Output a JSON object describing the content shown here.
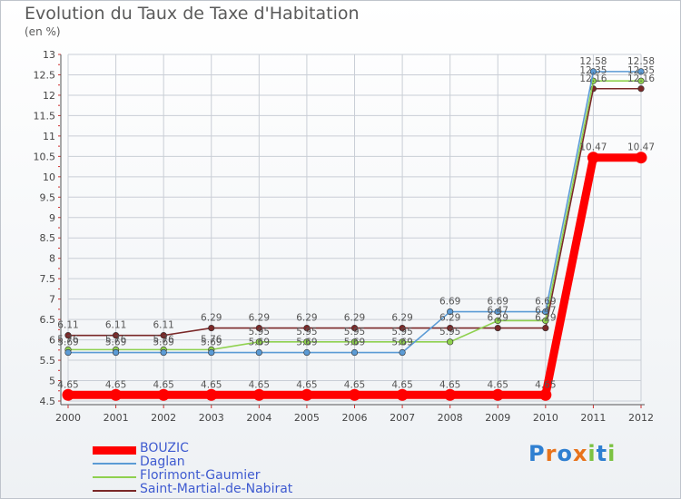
{
  "page": {
    "title": "Evolution du Taux de Taxe d'Habitation",
    "subtitle": "(en %)"
  },
  "logo": {
    "letters": [
      "P",
      "r",
      "o",
      "x",
      "i",
      "t",
      "i"
    ],
    "colors": [
      "#2f7fd1",
      "#e8731c",
      "#2f7fd1",
      "#e8731c",
      "#7cc242",
      "#2f7fd1",
      "#7cc242"
    ]
  },
  "chart_data": {
    "type": "line",
    "title": "Evolution du Taux de Taxe d'Habitation",
    "ylabel": "(en %)",
    "x": [
      "2000",
      "2001",
      "2002",
      "2003",
      "2004",
      "2005",
      "2006",
      "2007",
      "2008",
      "2009",
      "2010",
      "2011",
      "2012"
    ],
    "ylim": [
      4.5,
      13
    ],
    "yticks": [
      "4.5",
      "5",
      "5.5",
      "6",
      "6.5",
      "7",
      "7.5",
      "8",
      "8.5",
      "9",
      "9.5",
      "10",
      "10.5",
      "11",
      "11.5",
      "12",
      "12.5",
      "13"
    ],
    "series": [
      {
        "name": "BOUZIC",
        "color": "#ff0000",
        "values": [
          4.65,
          4.65,
          4.65,
          4.65,
          4.65,
          4.65,
          4.65,
          4.65,
          4.65,
          4.65,
          4.65,
          10.47,
          10.47
        ],
        "labels": [
          "4.65",
          "4.65",
          "4.65",
          "4.65",
          "4.65",
          "4.65",
          "4.65",
          "4.65",
          "4.65",
          "4.65",
          "4.65",
          "10.47",
          "10.47"
        ]
      },
      {
        "name": "Daglan",
        "color": "#5b9bd5",
        "values": [
          5.69,
          5.69,
          5.69,
          5.69,
          5.69,
          5.69,
          5.69,
          5.69,
          6.69,
          6.69,
          6.69,
          12.58,
          12.58
        ],
        "labels": [
          "5.69",
          "5.69",
          "5.69",
          "5.69",
          "5.69",
          "5.69",
          "5.69",
          "5.69",
          "6.69",
          "6.69",
          "6.69",
          "12.58",
          "12.58"
        ]
      },
      {
        "name": "Florimont-Gaumier",
        "color": "#8fd14f",
        "values": [
          5.76,
          5.76,
          5.76,
          5.76,
          5.95,
          5.95,
          5.95,
          5.95,
          5.95,
          6.47,
          6.47,
          12.35,
          12.35
        ],
        "labels": [
          "5.76",
          "5.76",
          "5.76",
          "5.76",
          "5.95",
          "5.95",
          "5.95",
          "5.95",
          "5.95",
          "6.47",
          "6.47",
          "12.35",
          "12.35"
        ]
      },
      {
        "name": "Saint-Martial-de-Nabirat",
        "color": "#7a2828",
        "values": [
          6.11,
          6.11,
          6.11,
          6.29,
          6.29,
          6.29,
          6.29,
          6.29,
          6.29,
          6.29,
          6.29,
          12.16,
          12.16
        ],
        "labels": [
          "6.11",
          "6.11",
          "6.11",
          "6.29",
          "6.29",
          "6.29",
          "6.29",
          "6.29",
          "6.29",
          "6.29",
          "6.29",
          "12.16",
          "12.16"
        ]
      }
    ]
  }
}
